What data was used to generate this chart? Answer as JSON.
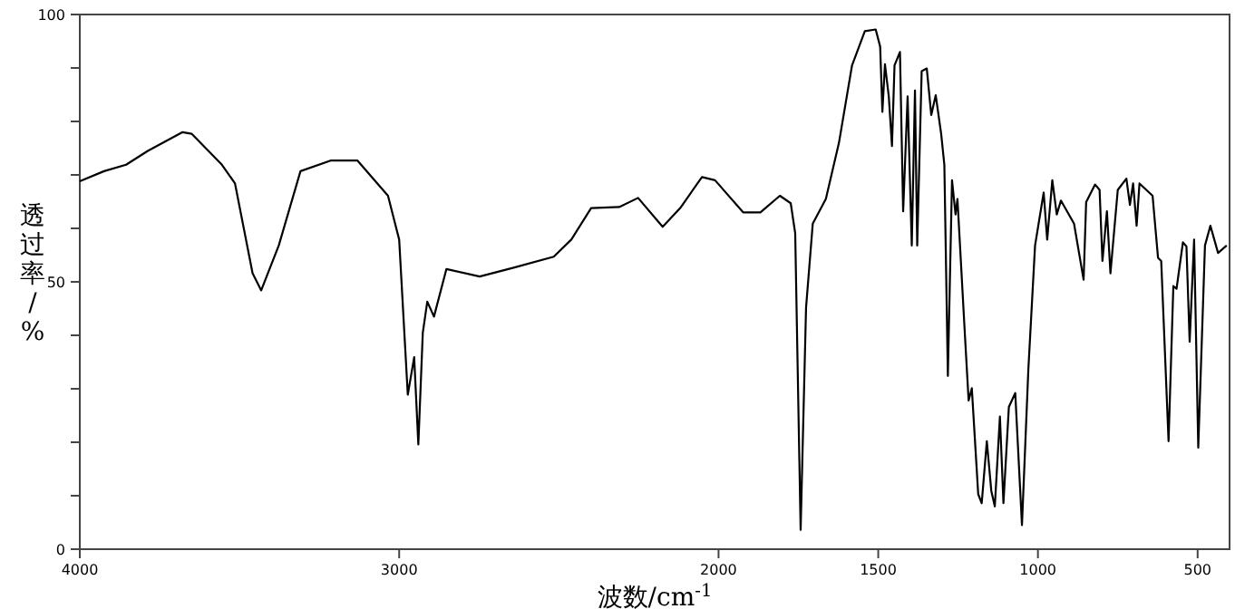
{
  "chart_data": {
    "type": "line",
    "xlabel": "波数/cm$^{-1}$",
    "ylabel": "透过率/%",
    "xlim": [
      4000,
      400
    ],
    "ylim": [
      0,
      100
    ],
    "xticks": [
      4000,
      3000,
      2000,
      1500,
      1000,
      500
    ],
    "yticks": [
      0,
      {
        "value": 10,
        "label": null
      },
      {
        "value": 20,
        "label": null
      },
      {
        "value": 30,
        "label": null
      },
      {
        "value": 40,
        "label": null
      },
      50,
      {
        "value": 60,
        "label": null
      },
      {
        "value": 70,
        "label": null
      },
      {
        "value": 80,
        "label": null
      },
      {
        "value": 90,
        "label": null
      },
      100
    ],
    "grid": false,
    "marker": "none",
    "line_style": "solid",
    "series": [
      {
        "color": "#000000",
        "x": [
          4000,
          3924,
          3855,
          3787,
          3678,
          3650,
          3555,
          3514,
          3459,
          3432,
          3377,
          3309,
          3213,
          3131,
          3035,
          3000,
          2973,
          2953,
          2940,
          2926,
          2912,
          2891,
          2852,
          2748,
          2639,
          2516,
          2461,
          2399,
          2311,
          2252,
          2175,
          2120,
          2052,
          2011,
          1923,
          1869,
          1808,
          1774,
          1760,
          1743,
          1726,
          1705,
          1664,
          1623,
          1582,
          1542,
          1508,
          1494,
          1487,
          1479,
          1467,
          1457,
          1449,
          1432,
          1422,
          1408,
          1395,
          1385,
          1378,
          1364,
          1348,
          1334,
          1320,
          1303,
          1293,
          1282,
          1269,
          1258,
          1252,
          1228,
          1217,
          1207,
          1187,
          1176,
          1160,
          1146,
          1135,
          1119,
          1108,
          1091,
          1071,
          1050,
          1030,
          1009,
          982,
          971,
          955,
          941,
          928,
          887,
          857,
          849,
          821,
          807,
          798,
          784,
          773,
          750,
          723,
          712,
          702,
          691,
          682,
          641,
          624,
          614,
          591,
          576,
          566,
          546,
          535,
          525,
          511,
          498,
          477,
          460,
          436,
          409
        ],
        "values": [
          68.8,
          70.7,
          71.9,
          74.5,
          78,
          77.7,
          71.9,
          68.4,
          51.6,
          48.4,
          56.8,
          70.7,
          72.7,
          72.7,
          66.1,
          57.9,
          28.9,
          35.9,
          19.6,
          40.5,
          46.3,
          43.5,
          52.4,
          51,
          52.7,
          54.7,
          57.9,
          63.8,
          64,
          65.7,
          60.3,
          63.8,
          69.6,
          69,
          63,
          63,
          66.1,
          64.7,
          59.1,
          3.6,
          45.2,
          60.9,
          65.5,
          76,
          90.5,
          96.9,
          97.2,
          94,
          81.8,
          90.7,
          84.7,
          75.4,
          90.5,
          93,
          63.2,
          84.7,
          56.8,
          85.8,
          56.8,
          89.4,
          89.9,
          81.2,
          84.9,
          77.7,
          71.9,
          32.4,
          69,
          62.6,
          65.5,
          39.4,
          27.8,
          30.1,
          10.3,
          8.6,
          20.2,
          10.9,
          8,
          24.8,
          8.6,
          26.6,
          29.2,
          4.5,
          33.6,
          56.8,
          66.7,
          57.9,
          69,
          62.6,
          65.2,
          60.9,
          50.4,
          64.9,
          68.2,
          67.2,
          53.9,
          63.2,
          51.6,
          67.2,
          69.3,
          64.4,
          68.4,
          60.5,
          68.4,
          66.1,
          54.5,
          53.9,
          20.2,
          49.2,
          48.7,
          57.4,
          56.6,
          38.8,
          57.9,
          19,
          56.8,
          60.5,
          55.4,
          56.8
        ]
      }
    ]
  }
}
